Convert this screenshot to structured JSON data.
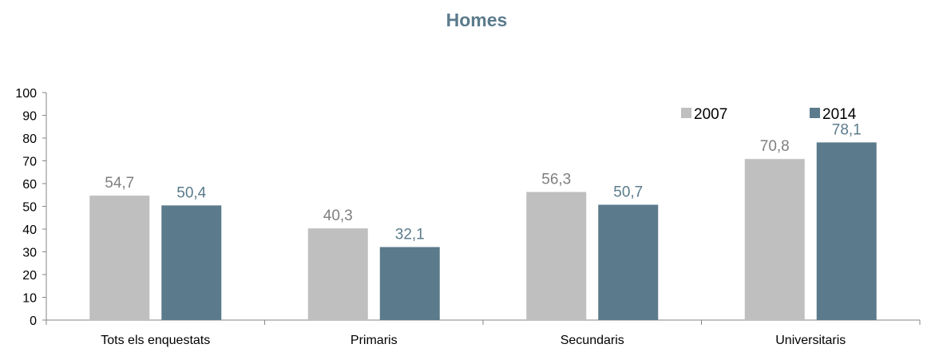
{
  "chart_data": {
    "type": "bar",
    "title": "Homes",
    "categories": [
      "Tots els enquestats",
      "Primaris",
      "Secundaris",
      "Universitaris"
    ],
    "series": [
      {
        "name": "2007",
        "values": [
          54.7,
          40.3,
          56.3,
          70.8
        ],
        "labels": [
          "54,7",
          "40,3",
          "56,3",
          "70,8"
        ],
        "color": "#bfbfbf",
        "label_color": "#7f7f7f"
      },
      {
        "name": "2014",
        "values": [
          50.4,
          32.1,
          50.7,
          78.1
        ],
        "labels": [
          "50,4",
          "32,1",
          "50,7",
          "78,1"
        ],
        "color": "#5b7b8c",
        "label_color": "#5b7b8c"
      }
    ],
    "y_ticks": [
      "0",
      "10",
      "20",
      "30",
      "40",
      "50",
      "60",
      "70",
      "80",
      "90",
      "100"
    ],
    "ylim": [
      0,
      100
    ],
    "grid": false,
    "legend_position": "top-right",
    "title_color": "#5b7b8c"
  }
}
